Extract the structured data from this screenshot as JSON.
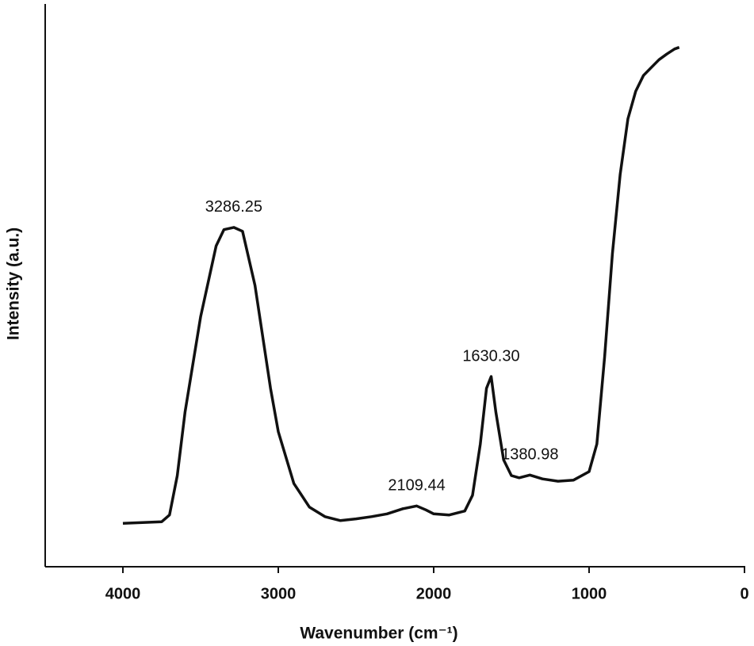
{
  "chart_data": {
    "type": "line",
    "x_label": "Wavenumber (cm⁻¹)",
    "y_label": "Intensity (a.u.)",
    "xlim": [
      4500,
      0
    ],
    "ylim": [
      0,
      100
    ],
    "xticks": [
      4000,
      3000,
      2000,
      1000,
      0
    ],
    "color": "#111111",
    "x": [
      4000,
      3750,
      3700,
      3650,
      3600,
      3500,
      3400,
      3350,
      3286.25,
      3230,
      3150,
      3050,
      3000,
      2900,
      2800,
      2700,
      2600,
      2500,
      2400,
      2300,
      2200,
      2109.44,
      2050,
      2000,
      1900,
      1800,
      1750,
      1700,
      1660,
      1630.3,
      1600,
      1550,
      1500,
      1450,
      1380.98,
      1300,
      1200,
      1100,
      1000,
      950,
      900,
      850,
      800,
      750,
      700,
      650,
      600,
      550,
      500,
      450,
      420
    ],
    "values": [
      7.7,
      8.0,
      9.2,
      16.2,
      27.5,
      44.4,
      57,
      59.9,
      60.3,
      59.6,
      50,
      31.7,
      24,
      14.8,
      10.6,
      8.9,
      8.2,
      8.5,
      8.9,
      9.4,
      10.3,
      10.8,
      10.1,
      9.4,
      9.2,
      9.9,
      12.7,
      21.8,
      31.7,
      33.8,
      27.5,
      19,
      16.2,
      15.8,
      16.3,
      15.6,
      15.2,
      15.4,
      16.9,
      21.8,
      37.3,
      55.6,
      69.7,
      79.6,
      84.5,
      87.3,
      88.7,
      90.1,
      91.1,
      92,
      92.3
    ],
    "annotations": [
      {
        "text": "3286.25",
        "x": 3286.25,
        "y": 60.3
      },
      {
        "text": "2109.44",
        "x": 2109.44,
        "y": 10.8
      },
      {
        "text": "1630.30",
        "x": 1630.3,
        "y": 33.8
      },
      {
        "text": "1380.98",
        "x": 1380.98,
        "y": 16.3
      }
    ]
  }
}
